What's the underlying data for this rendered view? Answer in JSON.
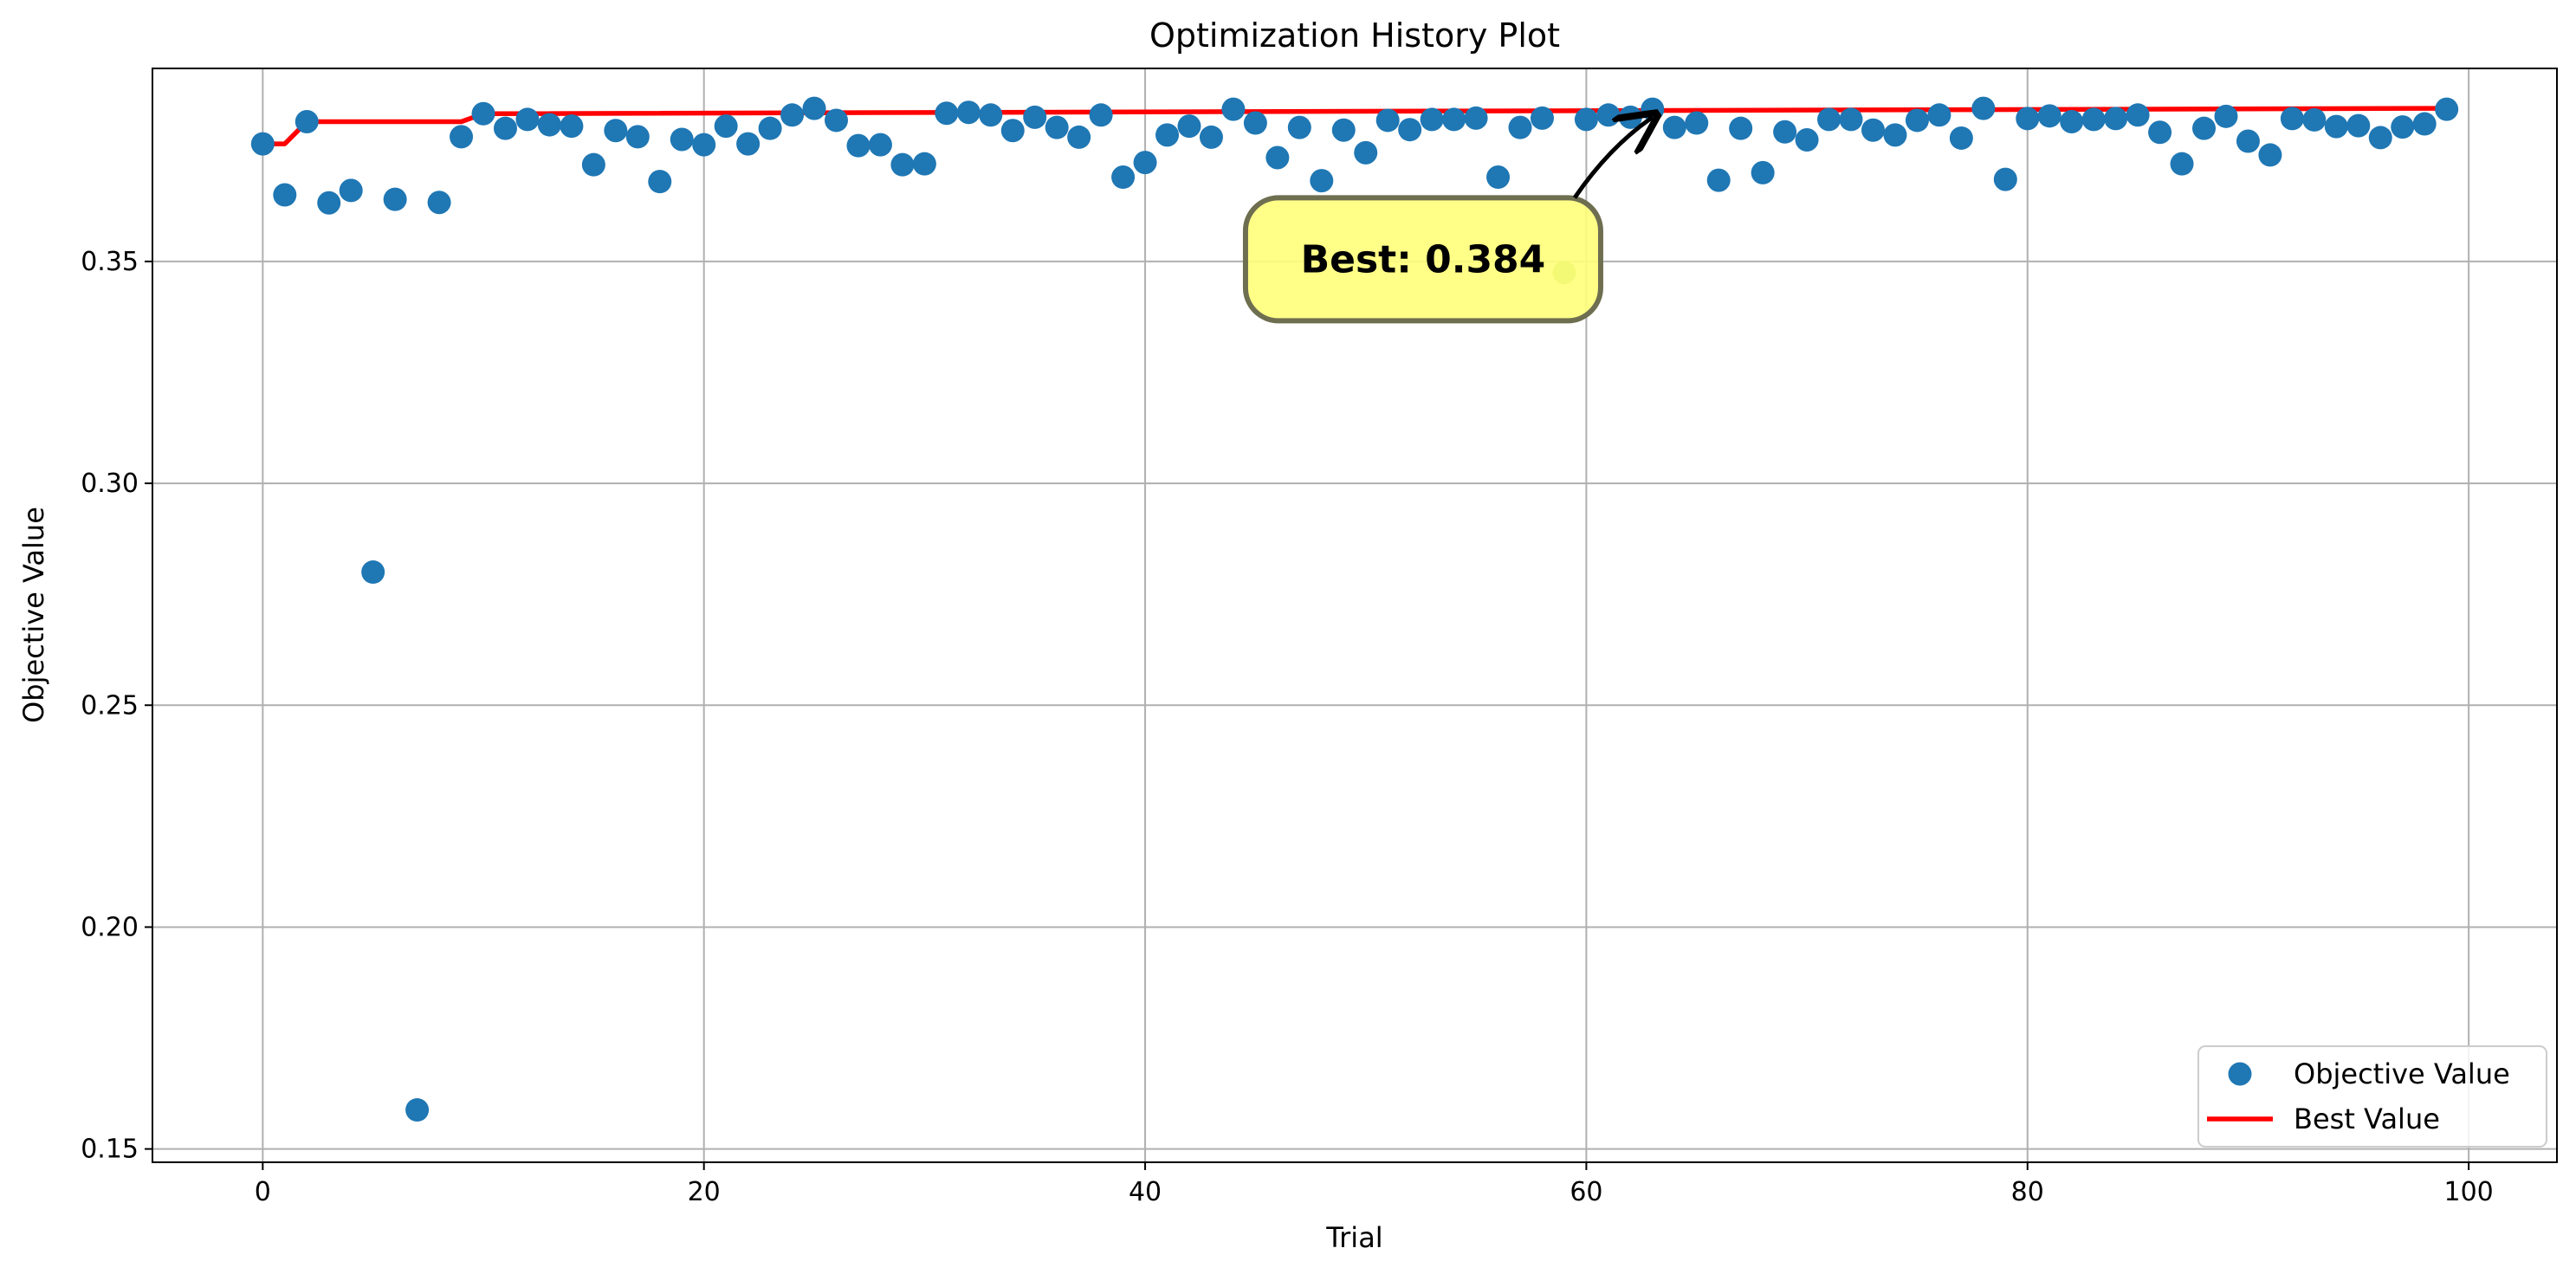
{
  "chart_data": {
    "type": "scatter",
    "title": "Optimization History Plot",
    "xlabel": "Trial",
    "ylabel": "Objective Value",
    "xlim": [
      -5,
      104
    ],
    "ylim": [
      0.147,
      0.3935
    ],
    "xticks": [
      0,
      20,
      40,
      60,
      80,
      100
    ],
    "xtick_labels": [
      "0",
      "20",
      "40",
      "60",
      "80",
      "100"
    ],
    "yticks": [
      0.15,
      0.2,
      0.25,
      0.3,
      0.35
    ],
    "ytick_labels": [
      "0.15",
      "0.20",
      "0.25",
      "0.30",
      "0.35"
    ],
    "grid": true,
    "legend_position": "lower-right",
    "series": [
      {
        "name": "Objective Value",
        "kind": "scatter",
        "color": "#1f77b4",
        "x": [
          0,
          1,
          2,
          3,
          4,
          5,
          6,
          7,
          8,
          9,
          10,
          11,
          12,
          13,
          14,
          15,
          16,
          17,
          18,
          19,
          20,
          21,
          22,
          23,
          24,
          25,
          26,
          27,
          28,
          29,
          30,
          31,
          32,
          33,
          34,
          35,
          36,
          37,
          38,
          39,
          40,
          41,
          42,
          43,
          44,
          45,
          46,
          47,
          48,
          49,
          50,
          51,
          52,
          53,
          54,
          55,
          56,
          57,
          58,
          59,
          60,
          61,
          62,
          63,
          64,
          65,
          66,
          67,
          68,
          69,
          70,
          71,
          72,
          73,
          74,
          75,
          76,
          77,
          78,
          79,
          80,
          81,
          82,
          83,
          84,
          85,
          86,
          87,
          88,
          89,
          90,
          91,
          92,
          93,
          94,
          95,
          96,
          97,
          98,
          99
        ],
        "y": [
          0.3765,
          0.365,
          0.3815,
          0.3632,
          0.366,
          0.28,
          0.364,
          0.1588,
          0.3633,
          0.3781,
          0.3833,
          0.38,
          0.382,
          0.3808,
          0.3805,
          0.3718,
          0.3795,
          0.3781,
          0.368,
          0.3775,
          0.3763,
          0.3805,
          0.3765,
          0.38,
          0.383,
          0.3845,
          0.3818,
          0.3761,
          0.3763,
          0.3718,
          0.372,
          0.3834,
          0.3836,
          0.383,
          0.3795,
          0.3825,
          0.3802,
          0.378,
          0.383,
          0.369,
          0.3723,
          0.3785,
          0.3805,
          0.378,
          0.3843,
          0.3812,
          0.3734,
          0.3802,
          0.3682,
          0.3796,
          0.3745,
          0.3818,
          0.3797,
          0.382,
          0.382,
          0.3823,
          0.369,
          0.3802,
          0.3823,
          0.3475,
          0.382,
          0.383,
          0.3825,
          0.3843,
          0.3802,
          0.3812,
          0.3683,
          0.38,
          0.37,
          0.3792,
          0.3774,
          0.382,
          0.382,
          0.3796,
          0.3785,
          0.3818,
          0.383,
          0.3778,
          0.3845,
          0.3685,
          0.3822,
          0.3828,
          0.3815,
          0.382,
          0.3822,
          0.383,
          0.3791,
          0.372,
          0.38,
          0.3827,
          0.3771,
          0.374,
          0.3822,
          0.3819,
          0.3804,
          0.3806,
          0.3779,
          0.3803,
          0.381,
          0.3843
        ]
      },
      {
        "name": "Best Value",
        "kind": "line",
        "color": "#ff0000",
        "x": [
          0,
          1,
          2,
          9,
          10,
          99
        ],
        "y": [
          0.3765,
          0.3765,
          0.3815,
          0.3815,
          0.3833,
          0.3845
        ]
      }
    ],
    "highlight_point": {
      "x": 59,
      "y": 0.3475,
      "color": "#8dc04a"
    },
    "annotation": {
      "text": "Best: 0.384",
      "box_center": [
        52.6,
        0.3505
      ],
      "arrow_target": [
        63,
        0.3825
      ],
      "box_color": "#ffff7a",
      "border_color": "#6e6e50"
    }
  }
}
